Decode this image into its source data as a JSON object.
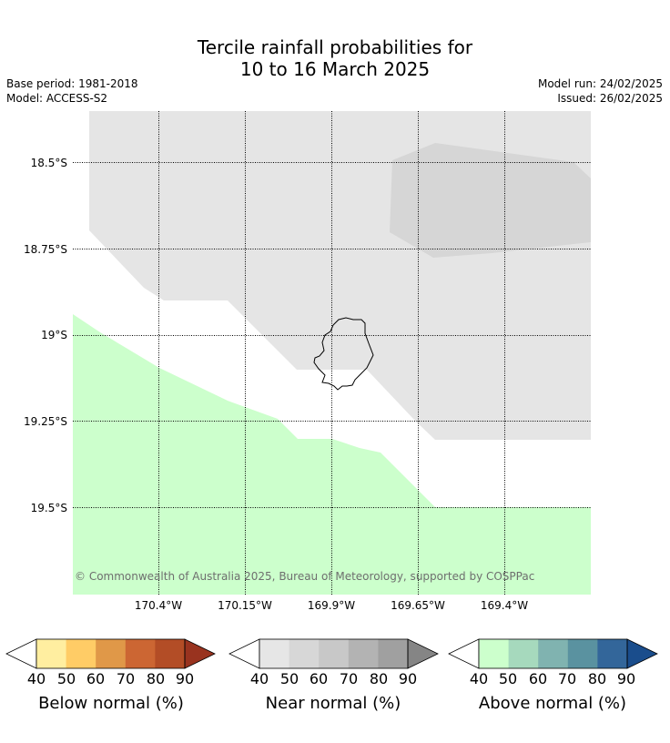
{
  "header": {
    "title_line1": "Tercile rainfall probabilities for",
    "title_line2": "10 to 16 March 2025",
    "base_period": "Base period: 1981-2018",
    "model": "Model: ACCESS-S2",
    "model_run": "Model run: 24/02/2025",
    "issued": "Issued: 26/02/2025"
  },
  "map": {
    "region": "Niue",
    "latitude_labels": [
      "18.5°S",
      "18.75°S",
      "19°S",
      "19.25°S",
      "19.5°S"
    ],
    "longitude_labels": [
      "170.4°W",
      "170.15°W",
      "169.9°W",
      "169.65°W",
      "169.4°W"
    ],
    "copyright": "© Commonwealth of Australia 2025, Bureau of Meteorology, supported by COSPPac",
    "colors": {
      "near_normal_40_50": "#e5e5e5",
      "near_normal_50_60": "#d6d6d6",
      "above_normal_40_50": "#ccffcc",
      "coastline": "#000000"
    }
  },
  "legends": [
    {
      "caption": "Below normal (%)",
      "ticks": [
        "40",
        "50",
        "60",
        "70",
        "80",
        "90"
      ],
      "colors": [
        "#ffffff",
        "#ffeea0",
        "#ffcc66",
        "#e09848",
        "#cc6633",
        "#b34d26",
        "#99331f"
      ]
    },
    {
      "caption": "Near normal (%)",
      "ticks": [
        "40",
        "50",
        "60",
        "70",
        "80",
        "90"
      ],
      "colors": [
        "#ffffff",
        "#e6e6e6",
        "#d7d7d7",
        "#c8c8c8",
        "#b3b3b3",
        "#a0a0a0",
        "#858585"
      ]
    },
    {
      "caption": "Above normal (%)",
      "ticks": [
        "40",
        "50",
        "60",
        "70",
        "80",
        "90"
      ],
      "colors": [
        "#ffffff",
        "#ccffcc",
        "#a6d9bd",
        "#80b3b0",
        "#5a92a0",
        "#33669a",
        "#1a4d8c"
      ]
    }
  ]
}
